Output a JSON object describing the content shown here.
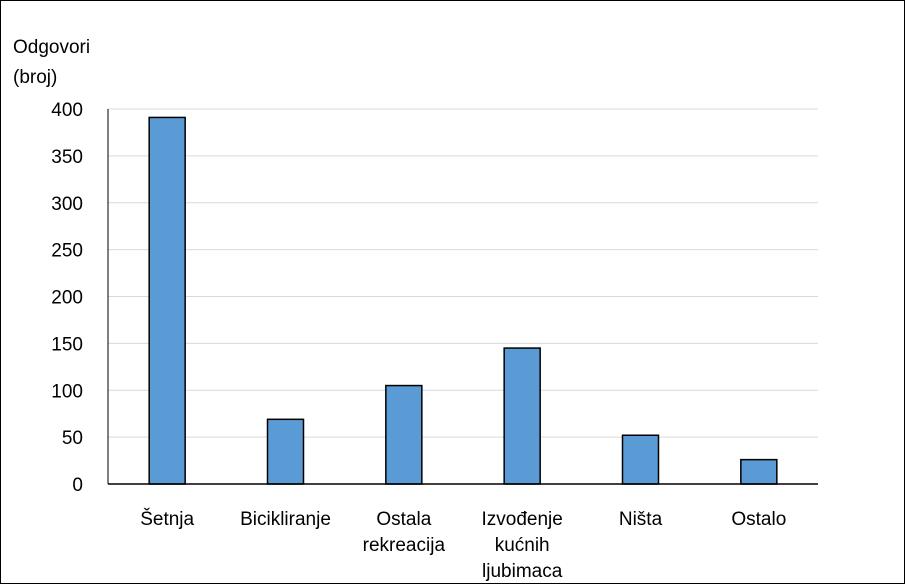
{
  "chart_data": {
    "type": "bar",
    "ylabel_lines": [
      "Odgovori",
      "(broj)"
    ],
    "categories": [
      [
        "Šetnja"
      ],
      [
        "Bicikliranje"
      ],
      [
        "Ostala",
        "rekreacija"
      ],
      [
        "Izvođenje",
        "kućnih",
        "ljubimaca"
      ],
      [
        "Ništa"
      ],
      [
        "Ostalo"
      ]
    ],
    "values": [
      391,
      69,
      105,
      145,
      52,
      26
    ],
    "ylim": [
      0,
      400
    ],
    "yticks": [
      0,
      50,
      100,
      150,
      200,
      250,
      300,
      350,
      400
    ],
    "grid": true,
    "legend": "none",
    "colors": {
      "bar_fill": "#5b9bd5",
      "bar_stroke": "#000000",
      "grid": "#d9d9d9",
      "axis": "#000000"
    }
  }
}
